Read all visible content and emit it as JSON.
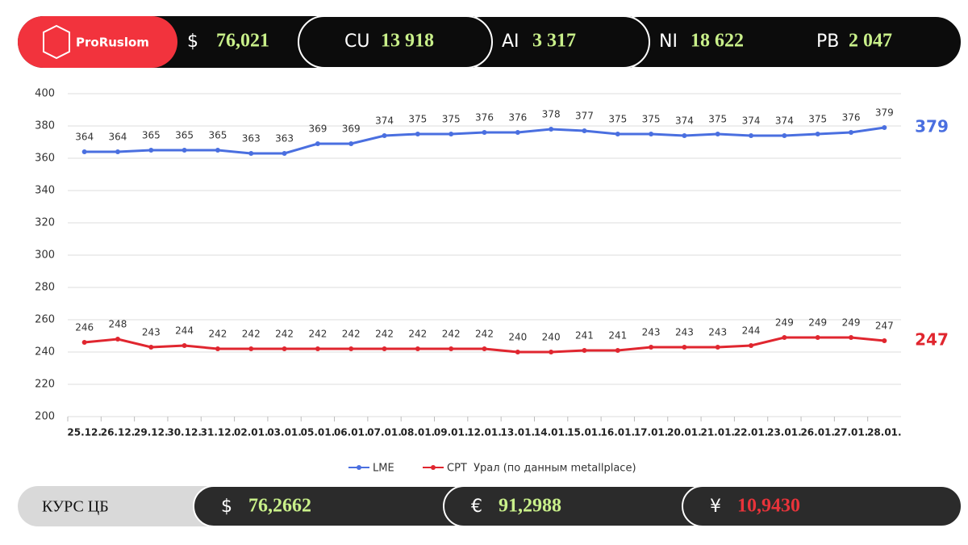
{
  "header": {
    "logo": "ProRuslom",
    "items": [
      {
        "symbol": "$",
        "value": "76,021"
      },
      {
        "symbol": "CU",
        "value": "13 918"
      },
      {
        "symbol": "AI",
        "value": "3 317"
      },
      {
        "symbol": "NI",
        "value": "18 622"
      },
      {
        "symbol": "PB",
        "value": "2 047"
      }
    ]
  },
  "footer": {
    "label": "КУРС ЦБ",
    "items": [
      {
        "symbol": "$",
        "value": "76,2662",
        "color": "#c9f08a"
      },
      {
        "symbol": "€",
        "value": "91,2988",
        "color": "#c9f08a"
      },
      {
        "symbol": "¥",
        "value": "10,9430",
        "color": "#e8333a"
      }
    ]
  },
  "chart_data": {
    "type": "line",
    "categories": [
      "25.12.",
      "26.12.",
      "29.12.",
      "30.12.",
      "31.12.",
      "02.01.",
      "03.01.",
      "05.01.",
      "06.01.",
      "07.01.",
      "08.01.",
      "09.01.",
      "12.01.",
      "13.01.",
      "14.01.",
      "15.01.",
      "16.01.",
      "17.01.",
      "20.01.",
      "21.01.",
      "22.01.",
      "23.01.",
      "26.01.",
      "27.01.",
      "28.01."
    ],
    "series": [
      {
        "name": "LME",
        "color": "#4a6fe0",
        "values": [
          364,
          364,
          365,
          365,
          365,
          363,
          363,
          369,
          369,
          374,
          375,
          375,
          376,
          376,
          378,
          377,
          375,
          375,
          374,
          375,
          374,
          374,
          375,
          376,
          379
        ]
      },
      {
        "name": "CPT  Урал (по данным metallplace)",
        "color": "#e0262f",
        "values": [
          246,
          248,
          243,
          244,
          242,
          242,
          242,
          242,
          242,
          242,
          242,
          242,
          242,
          240,
          240,
          241,
          241,
          243,
          243,
          243,
          244,
          249,
          249,
          249,
          247
        ]
      }
    ],
    "ylim": [
      200,
      400
    ],
    "yticks": [
      200,
      220,
      240,
      260,
      280,
      300,
      320,
      340,
      360,
      380,
      400
    ],
    "grid": true,
    "legend": "bottom"
  }
}
